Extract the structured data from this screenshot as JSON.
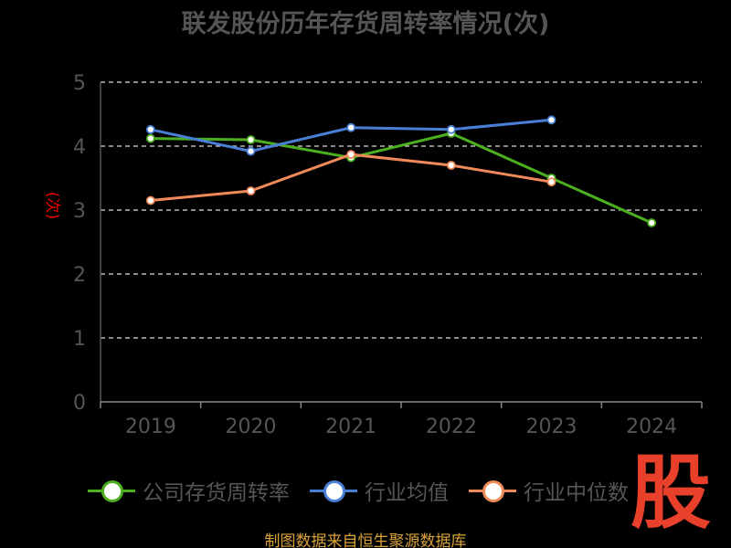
{
  "title": "联发股份历年存货周转率情况(次)",
  "source_note": "制图数据来自恒生聚源数据库",
  "watermark_text": "股",
  "chart_data": {
    "type": "line",
    "title": "联发股份历年存货周转率情况(次)",
    "ylabel": "(次)",
    "ylim": [
      0,
      5
    ],
    "yticks": [
      "0",
      "1",
      "2",
      "3",
      "4",
      "5"
    ],
    "categories": [
      "2019",
      "2020",
      "2021",
      "2022",
      "2023",
      "2024"
    ],
    "grid": true,
    "legend_position": "bottom",
    "series": [
      {
        "name": "公司存货周转率",
        "color": "#4caf20",
        "values": [
          4.12,
          4.1,
          3.82,
          4.2,
          3.5,
          2.8
        ]
      },
      {
        "name": "行业均值",
        "color": "#4a7fd8",
        "values": [
          4.26,
          3.92,
          4.29,
          4.26,
          4.41,
          null
        ]
      },
      {
        "name": "行业中位数",
        "color": "#f08a5a",
        "values": [
          3.15,
          3.3,
          3.87,
          3.7,
          3.44,
          null
        ]
      }
    ]
  }
}
